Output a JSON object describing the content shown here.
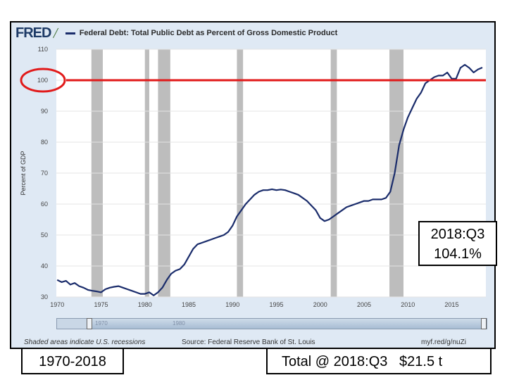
{
  "header": {
    "logo": "FRED",
    "logo_mark": "chart-line-icon",
    "title": "Federal Debt: Total Public Debt as Percent of Gross Domestic Product"
  },
  "footer": {
    "recessions_note": "Shaded areas indicate U.S. recessions",
    "source": "Source: Federal Reserve Bank of St. Louis",
    "url": "myf.red/g/nuZi"
  },
  "navigator": {
    "labels": [
      "1970",
      "1980"
    ]
  },
  "annotations": {
    "callout_line1": "2018:Q3",
    "callout_line2": "104.1%",
    "range_label": "1970-2018",
    "total_label": "Total @ 2018:Q3   $21.5 t",
    "reference_value": 100
  },
  "colors": {
    "series": "#1a2c6b",
    "reference_line": "#e11a1a",
    "recession": "#bdbdbd",
    "plot_bg": "#ffffff",
    "panel_bg": "#dfe9f4"
  },
  "chart_data": {
    "type": "line",
    "title": "Federal Debt: Total Public Debt as Percent of Gross Domestic Product",
    "ylabel": "Percent of GDP",
    "xlabel": "",
    "xlim": [
      1969.9,
      2018.9
    ],
    "ylim": [
      30,
      110
    ],
    "x_ticks": [
      1970,
      1975,
      1980,
      1985,
      1990,
      1995,
      2000,
      2005,
      2010,
      2015
    ],
    "y_ticks": [
      30,
      40,
      50,
      60,
      70,
      80,
      90,
      100,
      110
    ],
    "grid": true,
    "recessions": [
      [
        1973.9,
        1975.2
      ],
      [
        1980.0,
        1980.5
      ],
      [
        1981.5,
        1982.9
      ],
      [
        1990.5,
        1991.2
      ],
      [
        2001.2,
        2001.9
      ],
      [
        2007.9,
        2009.5
      ]
    ],
    "series": [
      {
        "x": [
          1970.0,
          1970.5,
          1971.0,
          1971.5,
          1972.0,
          1972.5,
          1973.0,
          1973.5,
          1974.0,
          1974.5,
          1975.0,
          1975.5,
          1976.0,
          1976.5,
          1977.0,
          1977.5,
          1978.0,
          1978.5,
          1979.0,
          1979.5,
          1980.0,
          1980.5,
          1981.0,
          1981.5,
          1982.0,
          1982.5,
          1983.0,
          1983.5,
          1984.0,
          1984.5,
          1985.0,
          1985.5,
          1986.0,
          1986.5,
          1987.0,
          1987.5,
          1988.0,
          1988.5,
          1989.0,
          1989.5,
          1990.0,
          1990.5,
          1991.0,
          1991.5,
          1992.0,
          1992.5,
          1993.0,
          1993.5,
          1994.0,
          1994.5,
          1995.0,
          1995.5,
          1996.0,
          1996.5,
          1997.0,
          1997.5,
          1998.0,
          1998.5,
          1999.0,
          1999.5,
          2000.0,
          2000.5,
          2001.0,
          2001.5,
          2002.0,
          2002.5,
          2003.0,
          2003.5,
          2004.0,
          2004.5,
          2005.0,
          2005.5,
          2006.0,
          2006.5,
          2007.0,
          2007.5,
          2008.0,
          2008.5,
          2009.0,
          2009.5,
          2010.0,
          2010.5,
          2011.0,
          2011.5,
          2012.0,
          2012.5,
          2013.0,
          2013.5,
          2014.0,
          2014.5,
          2015.0,
          2015.5,
          2016.0,
          2016.5,
          2017.0,
          2017.5,
          2018.0,
          2018.5
        ],
        "values": [
          35.5,
          34.8,
          35.2,
          34.0,
          34.5,
          33.5,
          33.0,
          32.3,
          32.0,
          31.8,
          31.5,
          32.5,
          33.0,
          33.3,
          33.5,
          33.0,
          32.5,
          32.0,
          31.5,
          31.0,
          31.0,
          31.5,
          30.5,
          31.5,
          33.0,
          35.5,
          37.5,
          38.5,
          39.0,
          40.5,
          43.0,
          45.5,
          47.0,
          47.5,
          48.0,
          48.5,
          49.0,
          49.5,
          50.0,
          51.0,
          53.0,
          56.0,
          58.0,
          60.0,
          61.5,
          63.0,
          64.0,
          64.5,
          64.5,
          64.8,
          64.5,
          64.7,
          64.5,
          64.0,
          63.5,
          63.0,
          62.0,
          61.0,
          59.5,
          58.0,
          55.5,
          54.5,
          55.0,
          56.0,
          57.0,
          58.0,
          59.0,
          59.5,
          60.0,
          60.5,
          61.0,
          61.0,
          61.5,
          61.5,
          61.5,
          62.0,
          64.0,
          70.0,
          79.0,
          84.0,
          88.0,
          91.0,
          94.0,
          96.0,
          99.0,
          100.0,
          101.0,
          101.5,
          101.5,
          102.5,
          100.5,
          100.5,
          104.0,
          105.0,
          104.0,
          102.5,
          103.5,
          104.1
        ]
      }
    ]
  }
}
